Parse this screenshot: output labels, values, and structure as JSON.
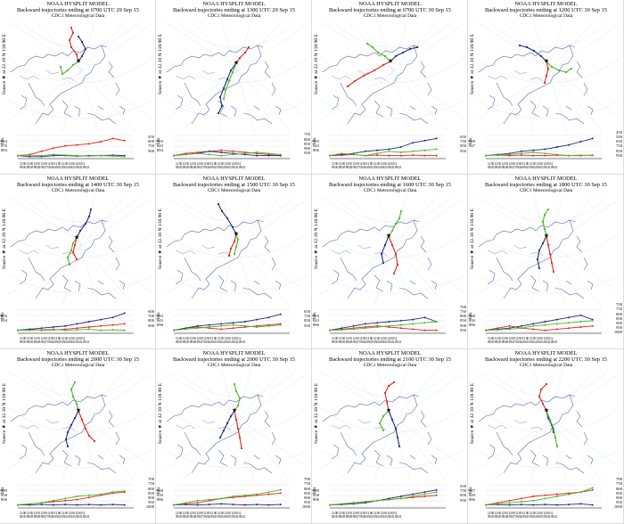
{
  "header": {
    "model": "NOAA HYSPLIT MODEL",
    "meteo": "CDC1 Meteorological Data"
  },
  "source_label": "Source ★ at 32.10 N 118.90 E",
  "hpa_label": "hPa",
  "time_ticks": [
    "12 00 12 00 12 00 12 00 12 00 12 00 12 00 12 00 12 00 12",
    "09/30 09/29 09/28 09/27 09/26 09/25 09/24 09/23 09/22 09/21"
  ],
  "colors": {
    "red": "#e8261c",
    "blue": "#1f2d7a",
    "green": "#4db82a",
    "map": "#5a6fa8",
    "grid": "#b9c2dc"
  },
  "panels": [
    {
      "title": "Backward trajectories ending at 0700 UTC 29 Sep 15",
      "left_levels": [
        "794",
        "876",
        "894"
      ],
      "right_levels": [
        "450",
        "600",
        "750",
        "900"
      ]
    },
    {
      "title": "Backward trajectories ending at 1300 UTC 29 Sep 15",
      "left_levels": [
        "793",
        "843",
        "894"
      ],
      "right_levels": [
        "750",
        "800",
        "850",
        "900",
        "950"
      ]
    },
    {
      "title": "Backward trajectories ending at 0700 UTC 30 Sep 15",
      "left_levels": [
        "793",
        "843",
        "896"
      ],
      "right_levels": [
        "650",
        "750",
        "850",
        "950"
      ]
    },
    {
      "title": "Backward trajectories ending at 1200 UTC 30 Sep 15",
      "left_levels": [
        "789",
        "847"
      ],
      "right_levels": [
        "450",
        "550",
        "650",
        "750",
        "850",
        "950"
      ]
    },
    {
      "title": "Backward trajectories ending at 1400 UTC 30 Sep 15",
      "left_levels": [
        "876",
        "894"
      ],
      "right_levels": [
        "600",
        "700",
        "800",
        "900"
      ]
    },
    {
      "title": "Backward trajectories ending at 1500 UTC 30 Sep 15",
      "left_levels": [
        "793",
        "843",
        "896"
      ],
      "right_levels": [
        "650",
        "750",
        "850",
        "950"
      ]
    },
    {
      "title": "Backward trajectories ending at 1600 UTC 30 Sep 15",
      "left_levels": [
        "793",
        "843",
        "896"
      ],
      "right_levels": [
        "700",
        "750",
        "800",
        "850",
        "900",
        "950"
      ]
    },
    {
      "title": "Backward trajectories ending at 1800 UTC 30 Sep 15",
      "left_levels": [
        "788",
        "850",
        "896"
      ],
      "right_levels": [
        "700",
        "750",
        "800",
        "850",
        "900",
        "950",
        "1000"
      ]
    },
    {
      "title": "Backward trajectories ending at 2000 UTC 30 Sep 15",
      "left_levels": [
        "789",
        "850",
        "896"
      ],
      "right_levels": [
        "700",
        "750",
        "800",
        "850",
        "900",
        "950",
        "1000"
      ]
    },
    {
      "title": "Backward trajectories ending at 2000 UTC 30 Sep 15",
      "left_levels": [
        "788",
        "850",
        "896"
      ],
      "right_levels": [
        "700",
        "750",
        "800",
        "850",
        "900",
        "950",
        "1000"
      ]
    },
    {
      "title": "Backward trajectories ending at 2100 UTC 30 Sep 15",
      "left_levels": [
        "789",
        "850",
        "896"
      ],
      "right_levels": [
        "650",
        "750",
        "850",
        "950"
      ]
    },
    {
      "title": "Backward trajectories ending at 2200 UTC 30 Sep 15",
      "left_levels": [
        "787",
        "849",
        "896"
      ],
      "right_levels": [
        "700",
        "750",
        "800",
        "850",
        "900",
        "950",
        "1000"
      ]
    }
  ]
}
